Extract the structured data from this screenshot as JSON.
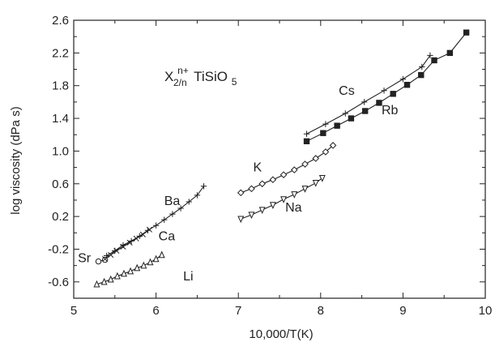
{
  "chart_data": {
    "type": "line",
    "title": "",
    "annotation": {
      "base": "X",
      "superscript": "n+",
      "subscript": "2/n",
      "rest": "TiSiO",
      "rest_subscript": "5"
    },
    "xlabel": "10,000/T(K)",
    "ylabel": "log  viscosity  (dPa s)",
    "xlim": [
      5,
      10
    ],
    "ylim": [
      -0.8,
      2.6
    ],
    "xticks": [
      5,
      6,
      7,
      8,
      9,
      10
    ],
    "xtick_labels": [
      "5",
      "6",
      "7",
      "8",
      "9",
      "10"
    ],
    "yticks": [
      -0.6,
      -0.2,
      0.2,
      0.6,
      1.0,
      1.4,
      1.8,
      2.2,
      2.6
    ],
    "ytick_labels": [
      "-0.6",
      "-0.2",
      "0.2",
      "0.6",
      "1.0",
      "1.4",
      "1.8",
      "2.2",
      "2.6"
    ],
    "grid": false,
    "legend": "none (series labeled directly)",
    "series": [
      {
        "name": "Sr",
        "marker": "circle-open",
        "label_pos": [
          5.05,
          -0.36
        ],
        "x": [
          5.3,
          5.38
        ],
        "y": [
          -0.35,
          -0.33
        ]
      },
      {
        "name": "Ca",
        "marker": "x",
        "label_pos": [
          6.03,
          -0.09
        ],
        "x": [
          5.38,
          5.45,
          5.52,
          5.6,
          5.68,
          5.76,
          5.84,
          5.92
        ],
        "y": [
          -0.32,
          -0.27,
          -0.22,
          -0.17,
          -0.12,
          -0.07,
          -0.02,
          0.04
        ]
      },
      {
        "name": "Ba",
        "marker": "plus",
        "label_pos": [
          6.1,
          0.34
        ],
        "x": [
          5.4,
          5.5,
          5.6,
          5.7,
          5.8,
          5.9,
          6.0,
          6.1,
          6.2,
          6.3,
          6.4,
          6.5,
          6.58
        ],
        "y": [
          -0.28,
          -0.22,
          -0.15,
          -0.1,
          -0.04,
          0.03,
          0.09,
          0.16,
          0.23,
          0.3,
          0.38,
          0.46,
          0.57
        ]
      },
      {
        "name": "Li",
        "marker": "triangle-open",
        "label_pos": [
          6.33,
          -0.58
        ],
        "x": [
          5.28,
          5.37,
          5.45,
          5.53,
          5.61,
          5.69,
          5.77,
          5.85,
          5.93,
          6.0,
          6.07
        ],
        "y": [
          -0.63,
          -0.6,
          -0.57,
          -0.53,
          -0.5,
          -0.47,
          -0.43,
          -0.4,
          -0.36,
          -0.32,
          -0.27
        ]
      },
      {
        "name": "K",
        "marker": "diamond-open",
        "label_pos": [
          7.18,
          0.75
        ],
        "x": [
          7.03,
          7.16,
          7.29,
          7.42,
          7.55,
          7.68,
          7.81,
          7.94,
          8.06,
          8.15
        ],
        "y": [
          0.49,
          0.54,
          0.6,
          0.65,
          0.71,
          0.77,
          0.84,
          0.91,
          0.99,
          1.07
        ]
      },
      {
        "name": "Na",
        "marker": "triangle-down-open",
        "label_pos": [
          7.57,
          0.26
        ],
        "x": [
          7.03,
          7.16,
          7.29,
          7.42,
          7.55,
          7.68,
          7.81,
          7.94,
          8.02
        ],
        "y": [
          0.17,
          0.22,
          0.28,
          0.34,
          0.41,
          0.47,
          0.54,
          0.61,
          0.67
        ]
      },
      {
        "name": "Cs",
        "marker": "plus",
        "label_pos": [
          8.22,
          1.69
        ],
        "x": [
          7.83,
          8.06,
          8.3,
          8.53,
          8.77,
          9.0,
          9.23,
          9.33
        ],
        "y": [
          1.21,
          1.33,
          1.46,
          1.6,
          1.74,
          1.88,
          2.03,
          2.17
        ]
      },
      {
        "name": "Rb",
        "marker": "square-filled",
        "label_pos": [
          8.74,
          1.45
        ],
        "x": [
          7.83,
          8.03,
          8.2,
          8.37,
          8.54,
          8.71,
          8.88,
          9.05,
          9.22,
          9.38,
          9.57,
          9.77
        ],
        "y": [
          1.12,
          1.22,
          1.31,
          1.4,
          1.49,
          1.59,
          1.7,
          1.81,
          1.93,
          2.11,
          2.2,
          2.45
        ]
      }
    ]
  }
}
